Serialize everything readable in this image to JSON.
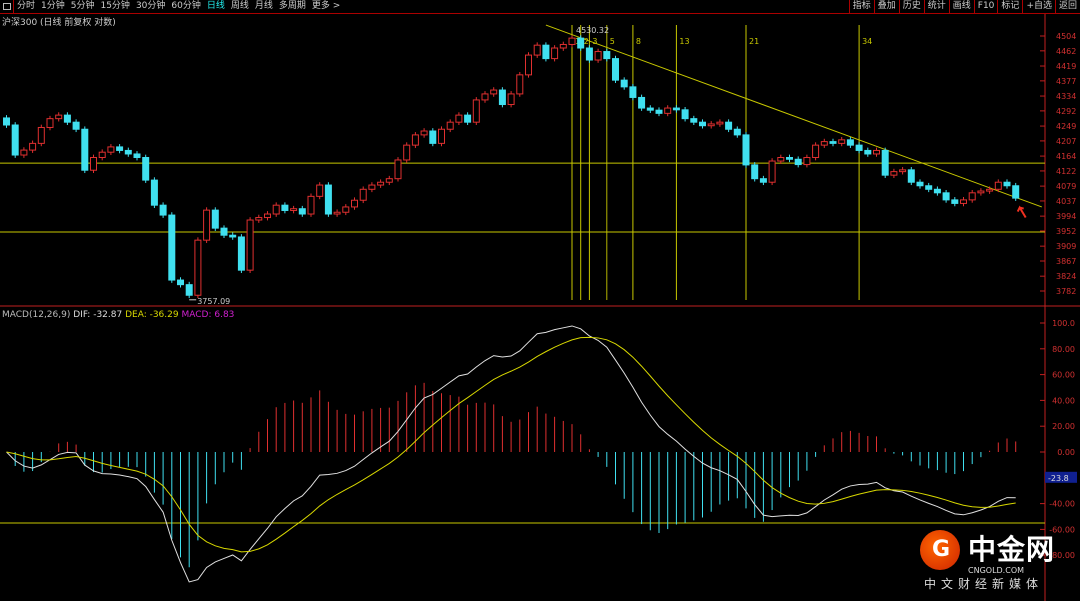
{
  "toolbar": {
    "left": [
      "分时",
      "1分钟",
      "5分钟",
      "15分钟",
      "30分钟",
      "60分钟",
      "日线",
      "周线",
      "月线",
      "多周期",
      "更多 >"
    ],
    "active": "日线",
    "right": [
      "指标",
      "叠加",
      "历史",
      "统计",
      "画线",
      "F10",
      "标记",
      "+自选",
      "返回"
    ]
  },
  "chart_title": "沪深300 (日线 前复权 对数)",
  "macd": {
    "name": "MACD(12,26,9)",
    "dif": "DIF: -32.87",
    "dea": "DEA: -36.29",
    "macd": "MACD: 6.83",
    "cursor_value": "-23.8",
    "axis": [
      "100.0",
      "80.00",
      "60.00",
      "40.00",
      "20.00",
      "0.00",
      "-40.00",
      "-60.00",
      "-80.00"
    ]
  },
  "price_axis": [
    "4504",
    "4462",
    "4419",
    "4377",
    "4334",
    "4292",
    "4249",
    "4207",
    "4164",
    "4122",
    "4079",
    "4037",
    "3994",
    "3952",
    "3909",
    "3867",
    "3824",
    "3782"
  ],
  "annotations": {
    "high_label": "4530.32",
    "low_label": "3757.09",
    "fib_labels": [
      "1",
      "2",
      "3",
      "5",
      "8",
      "13",
      "21",
      "34"
    ]
  },
  "colors": {
    "up": "#e03030",
    "down": "#40e0f0",
    "dif": "#e0e0e0",
    "dea": "#d8d800",
    "axis": "#c02020",
    "guide": "#c8c800"
  },
  "chart_data": {
    "type": "candlestick",
    "closes": [
      4252,
      4167,
      4181,
      4200,
      4245,
      4270,
      4280,
      4260,
      4240,
      4124,
      4160,
      4175,
      4190,
      4180,
      4170,
      4160,
      4096,
      4025,
      3997,
      3813,
      3800,
      3770,
      3926,
      4011,
      3960,
      3940,
      3935,
      3841,
      3983,
      3990,
      4000,
      4025,
      4010,
      4015,
      4000,
      4050,
      4082,
      4000,
      4005,
      4020,
      4039,
      4070,
      4082,
      4090,
      4100,
      4153,
      4195,
      4224,
      4235,
      4200,
      4240,
      4260,
      4280,
      4260,
      4323,
      4340,
      4351,
      4310,
      4340,
      4394,
      4450,
      4478,
      4440,
      4470,
      4480,
      4498,
      4470,
      4436,
      4460,
      4440,
      4379,
      4360,
      4330,
      4300,
      4294,
      4285,
      4300,
      4295,
      4270,
      4260,
      4250,
      4255,
      4260,
      4240,
      4224,
      4139,
      4100,
      4090,
      4150,
      4160,
      4155,
      4140,
      4160,
      4195,
      4205,
      4200,
      4210,
      4195,
      4180,
      4170,
      4180,
      4110,
      4120,
      4125,
      4090,
      4080,
      4070,
      4060,
      4040,
      4030,
      4040,
      4060,
      4065,
      4070,
      4090,
      4080,
      4045
    ],
    "price_range": [
      3757,
      4530
    ],
    "high": 4530.32,
    "low": 3757.09,
    "horizontal_levels": [
      4144,
      3949
    ],
    "fib_time_indices": [
      65,
      66,
      67,
      69,
      72,
      77,
      85,
      98
    ],
    "trendline": [
      [
        62,
        4535
      ],
      [
        119,
        4020
      ]
    ],
    "macd_range": [
      -95,
      105
    ],
    "macd_level": -55
  },
  "logo": {
    "cn": "中金网",
    "en": "CNGOLD.COM",
    "slogan": "中文财经新媒体"
  }
}
